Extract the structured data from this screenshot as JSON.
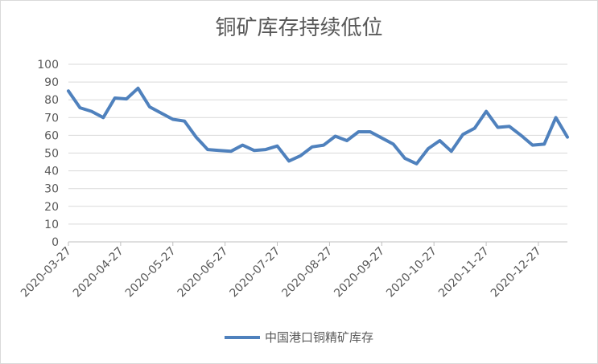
{
  "chart_data": {
    "type": "line",
    "title": "铜矿库存持续低位",
    "xlabel": "",
    "ylabel": "",
    "ylim": [
      0,
      100
    ],
    "yticks": [
      0,
      10,
      20,
      30,
      40,
      50,
      60,
      70,
      80,
      90,
      100
    ],
    "xtick_labels": [
      "2020-03-27",
      "2020-04-27",
      "2020-05-27",
      "2020-06-27",
      "2020-07-27",
      "2020-08-27",
      "2020-09-27",
      "2020-10-27",
      "2020-11-27",
      "2020-12-27"
    ],
    "grid": true,
    "legend_position": "bottom",
    "series": [
      {
        "name": "中国港口铜精矿库存",
        "color": "#4f81bd",
        "values": [
          85,
          75.5,
          73.5,
          70,
          81,
          80.5,
          86.5,
          76,
          72.5,
          69,
          68,
          59,
          52,
          51.5,
          51,
          54.5,
          51.5,
          52,
          54,
          45.5,
          48.5,
          53.5,
          54.5,
          59.5,
          57,
          62,
          62,
          58.5,
          55,
          47,
          44,
          52.5,
          57,
          51,
          60.5,
          64,
          73.5,
          64.5,
          65,
          60,
          54.5,
          55,
          70,
          59
        ]
      }
    ]
  }
}
